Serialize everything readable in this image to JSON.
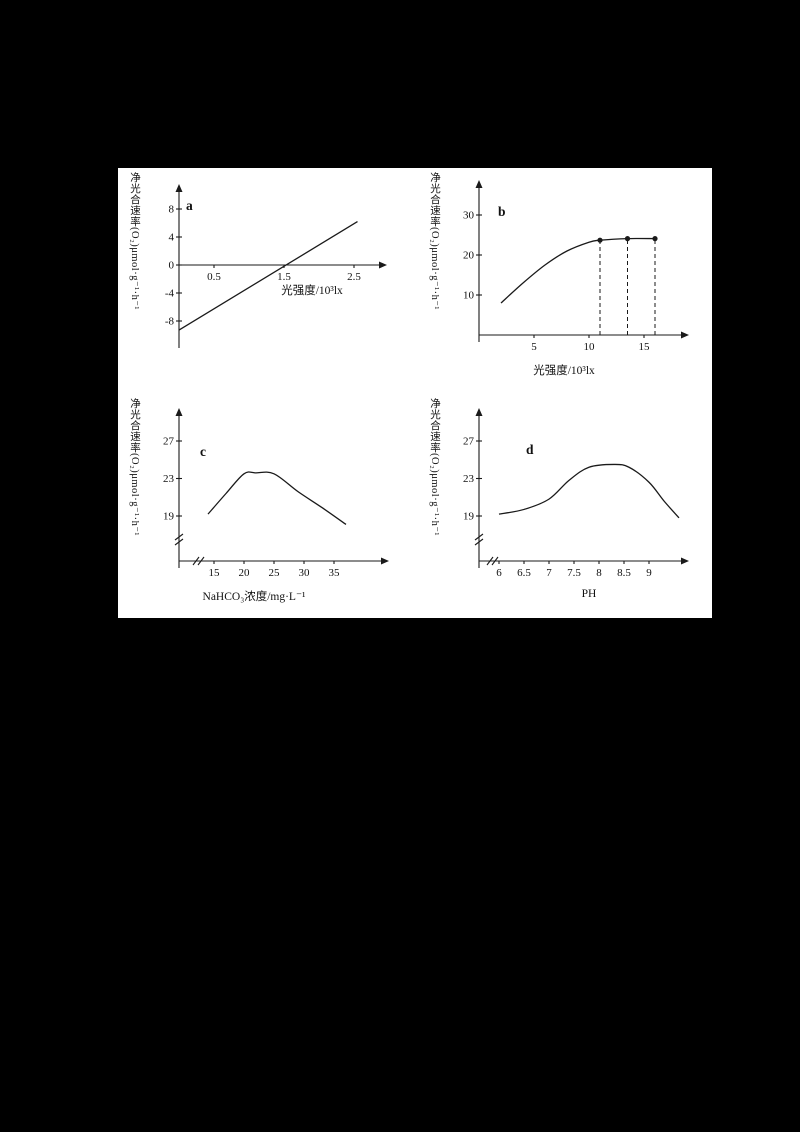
{
  "page": {
    "background": "#000000",
    "panel_background": "#ffffff",
    "ink": "#1a1a1a"
  },
  "chart_data": [
    {
      "id": "a",
      "type": "line",
      "label": "a",
      "xlabel": "光强度/10³lx",
      "ylabel": "净光合速率(O₂)μmol·g⁻¹·h⁻¹",
      "x_ticks": [
        0.5,
        1.5,
        2.5
      ],
      "y_ticks": [
        8,
        4,
        0,
        -4,
        -8
      ],
      "xlim": [
        0,
        3
      ],
      "ylim": [
        -11,
        10
      ],
      "x_intercept": 1.5,
      "points": [
        [
          0,
          -9.3
        ],
        [
          2.55,
          6.2
        ]
      ]
    },
    {
      "id": "b",
      "type": "line",
      "label": "b",
      "xlabel": "光强度/10³lx",
      "ylabel": "净光合速率(O₂)μmol·g⁻¹·h⁻¹",
      "x_ticks": [
        5,
        10,
        15
      ],
      "y_ticks": [
        10,
        20,
        30
      ],
      "xlim": [
        0,
        19
      ],
      "ylim": [
        0,
        38
      ],
      "plateau_value": 24,
      "points": [
        [
          2,
          8
        ],
        [
          4,
          13
        ],
        [
          6,
          17.5
        ],
        [
          8,
          21
        ],
        [
          10,
          23.2
        ],
        [
          11,
          23.7
        ],
        [
          13.5,
          24.1
        ],
        [
          16,
          24.1
        ]
      ],
      "dashed_x": [
        11,
        13.5,
        16
      ],
      "dashed_y": [
        23.7,
        24.1,
        24.1
      ]
    },
    {
      "id": "c",
      "type": "line",
      "label": "c",
      "xlabel": "NaHCO₃浓度/mg·L⁻¹",
      "ylabel": "净光合速率(O₂)μmol·g⁻¹·h⁻¹",
      "x_ticks": [
        15,
        20,
        25,
        30,
        35
      ],
      "y_ticks": [
        19,
        23,
        27
      ],
      "xlim": [
        13,
        39
      ],
      "ylim": [
        17,
        29
      ],
      "axis_break": true,
      "points": [
        [
          14,
          19.2
        ],
        [
          17,
          21.4
        ],
        [
          20,
          23.5
        ],
        [
          22,
          23.6
        ],
        [
          25,
          23.5
        ],
        [
          29,
          21.6
        ],
        [
          33,
          19.9
        ],
        [
          37,
          18.1
        ]
      ]
    },
    {
      "id": "d",
      "type": "line",
      "label": "d",
      "xlabel": "PH",
      "ylabel": "净光合速率(O₂)μmol·g⁻¹·h⁻¹",
      "x_ticks": [
        6,
        6.5,
        7,
        7.5,
        8,
        8.5,
        9
      ],
      "y_ticks": [
        19,
        23,
        27
      ],
      "xlim": [
        5.8,
        9.8
      ],
      "ylim": [
        17,
        29
      ],
      "axis_break": true,
      "points": [
        [
          6,
          19.2
        ],
        [
          6.5,
          19.7
        ],
        [
          7,
          20.8
        ],
        [
          7.4,
          22.8
        ],
        [
          7.8,
          24.2
        ],
        [
          8.3,
          24.5
        ],
        [
          8.6,
          24.2
        ],
        [
          9,
          22.6
        ],
        [
          9.3,
          20.6
        ],
        [
          9.6,
          18.8
        ]
      ]
    }
  ]
}
